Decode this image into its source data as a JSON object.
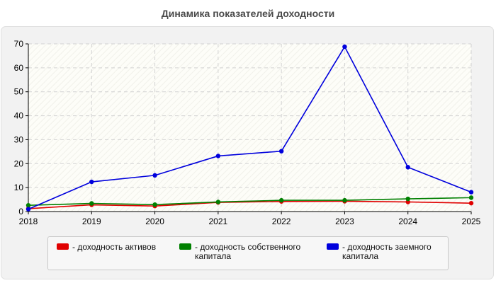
{
  "title": "Динамика показателей доходности",
  "chart_data": {
    "type": "line",
    "title": "Динамика показателей доходности",
    "xlabel": "",
    "ylabel": "",
    "x": [
      "2018",
      "2019",
      "2020",
      "2021",
      "2022",
      "2023",
      "2024",
      "2025"
    ],
    "ylim": [
      0,
      70
    ],
    "yticks": [
      0,
      10,
      20,
      30,
      40,
      50,
      60,
      70
    ],
    "grid": true,
    "legend_position": "bottom",
    "series": [
      {
        "name": "- доходность активов",
        "color": "#e00000",
        "values": [
          1.2,
          2.8,
          2.3,
          3.8,
          4.2,
          4.3,
          4.0,
          3.5
        ]
      },
      {
        "name": "- доходность собственного капитала",
        "color": "#008000",
        "values": [
          2.6,
          3.4,
          2.9,
          4.0,
          4.7,
          4.7,
          5.3,
          5.8
        ]
      },
      {
        "name": "- доходность заемного капитала",
        "color": "#0000dd",
        "values": [
          1.0,
          12.4,
          15.1,
          23.2,
          25.2,
          68.8,
          18.5,
          8.1
        ]
      }
    ]
  }
}
